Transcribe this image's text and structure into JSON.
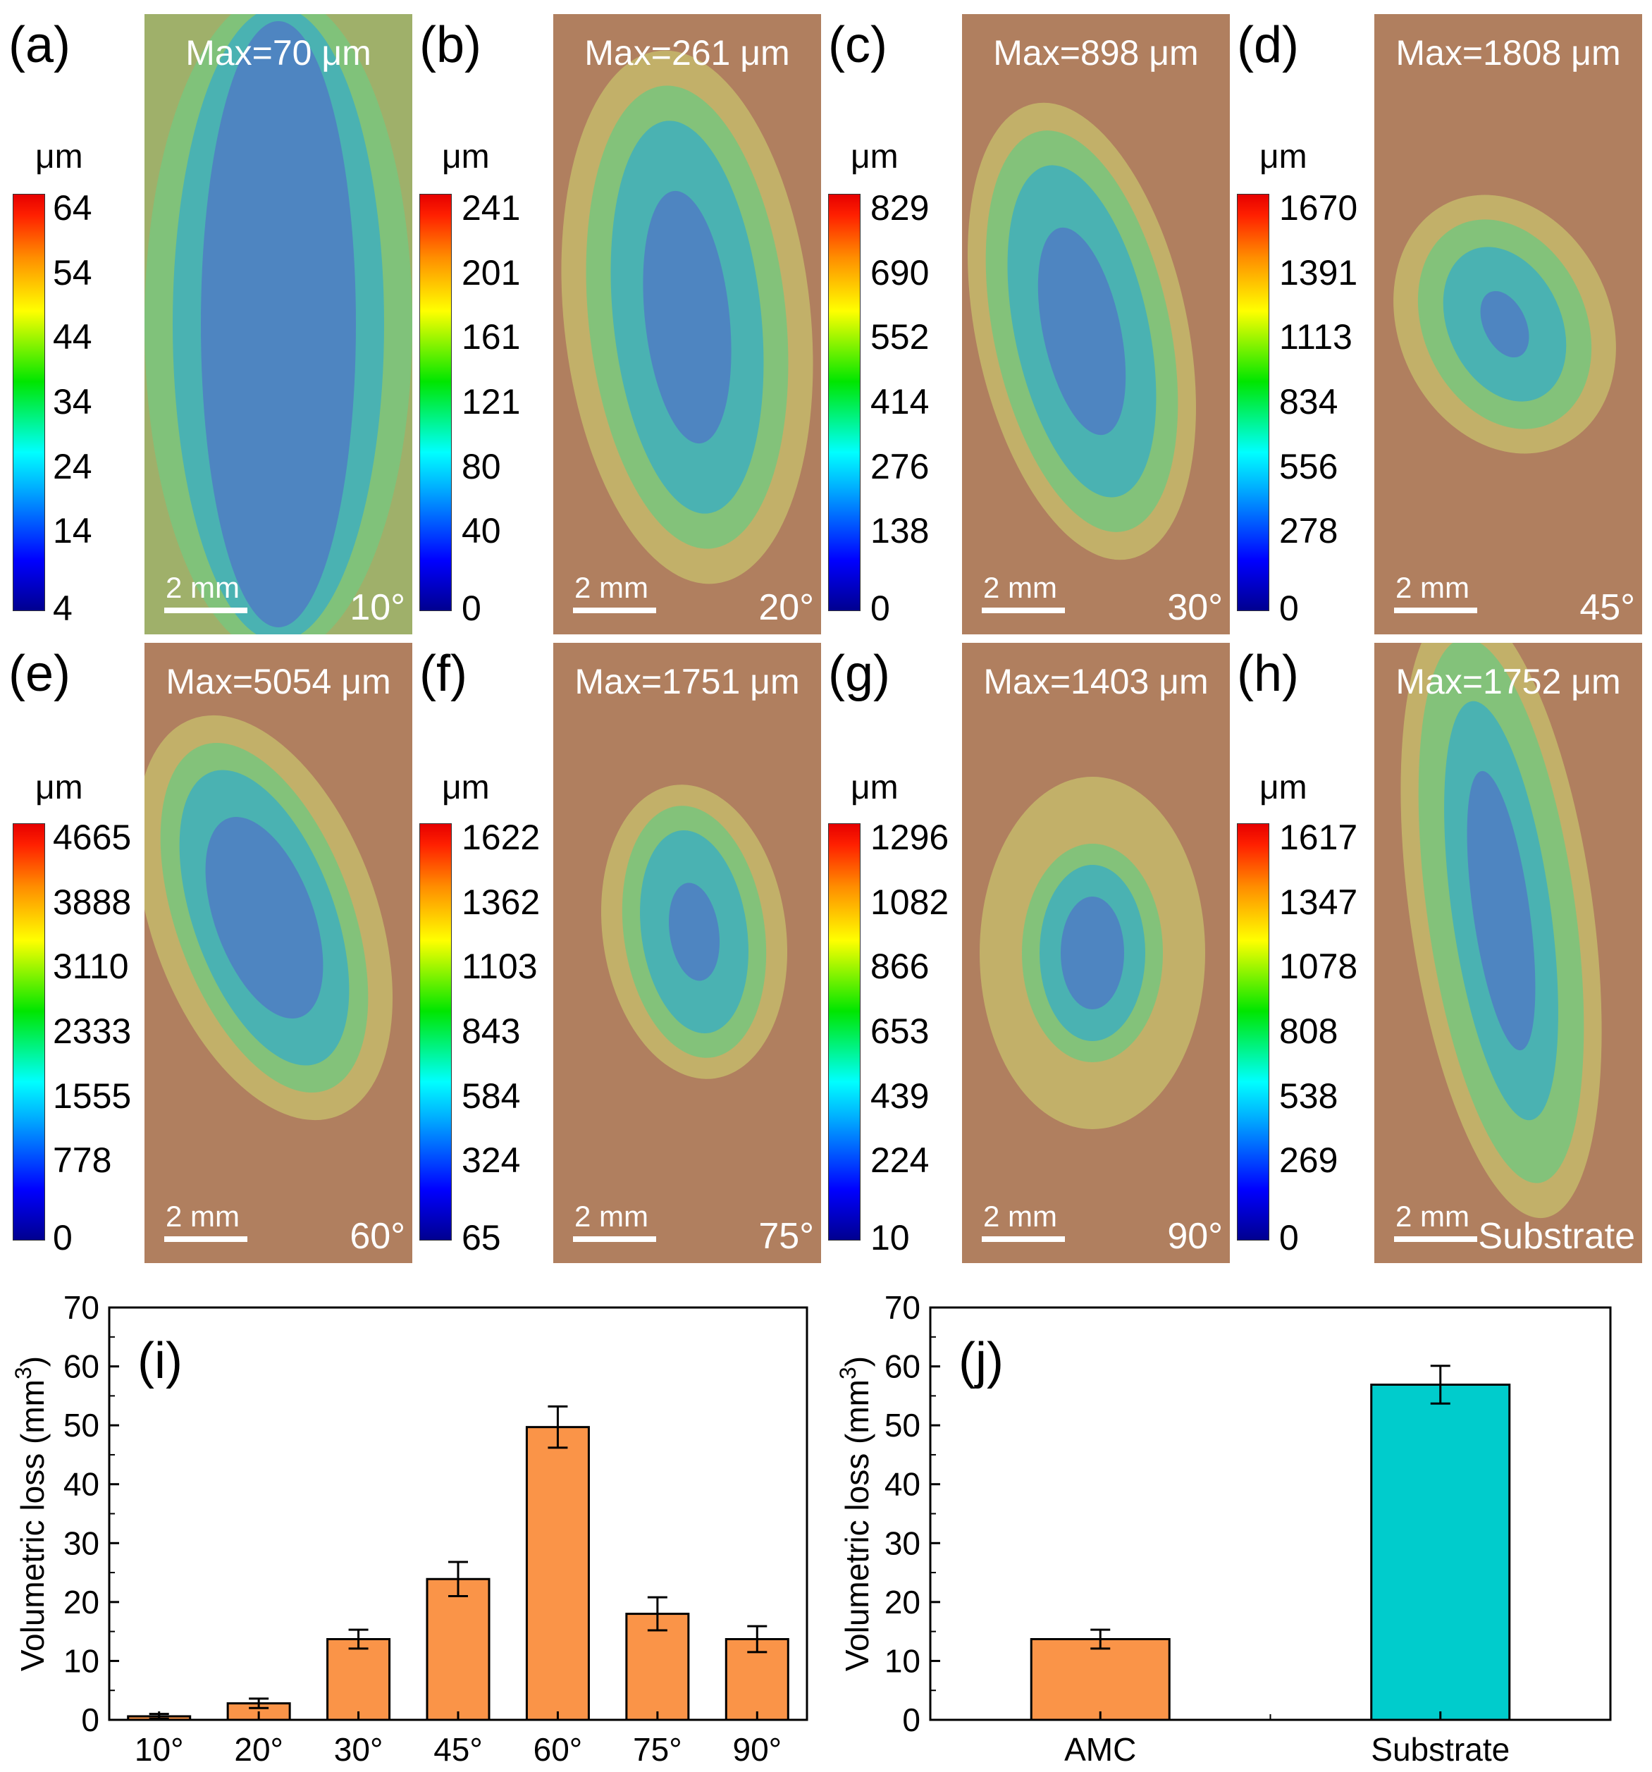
{
  "panels": [
    {
      "letter": "(a)",
      "max_label": "Max=70 μm",
      "angle": "10°",
      "scale": "2 mm",
      "unit": "μm",
      "ticks": [
        "64",
        "54",
        "44",
        "34",
        "24",
        "14",
        "4"
      ],
      "shape": "band"
    },
    {
      "letter": "(b)",
      "max_label": "Max=261 μm",
      "angle": "20°",
      "scale": "2 mm",
      "unit": "μm",
      "ticks": [
        "241",
        "201",
        "161",
        "121",
        "80",
        "40",
        "0"
      ],
      "shape": "ellipse"
    },
    {
      "letter": "(c)",
      "max_label": "Max=898 μm",
      "angle": "30°",
      "scale": "2 mm",
      "unit": "μm",
      "ticks": [
        "829",
        "690",
        "552",
        "414",
        "276",
        "138",
        "0"
      ],
      "shape": "drop"
    },
    {
      "letter": "(d)",
      "max_label": "Max=1808 μm",
      "angle": "45°",
      "scale": "2 mm",
      "unit": "μm",
      "ticks": [
        "1670",
        "1391",
        "1113",
        "834",
        "556",
        "278",
        "0"
      ],
      "shape": "kidney"
    },
    {
      "letter": "(e)",
      "max_label": "Max=5054 μm",
      "angle": "60°",
      "scale": "2 mm",
      "unit": "μm",
      "ticks": [
        "4665",
        "3888",
        "3110",
        "2333",
        "1555",
        "778",
        "0"
      ],
      "shape": "pear"
    },
    {
      "letter": "(f)",
      "max_label": "Max=1751 μm",
      "angle": "75°",
      "scale": "2 mm",
      "unit": "μm",
      "ticks": [
        "1622",
        "1362",
        "1103",
        "843",
        "584",
        "324",
        "65"
      ],
      "shape": "oval"
    },
    {
      "letter": "(g)",
      "max_label": "Max=1403 μm",
      "angle": "90°",
      "scale": "2 mm",
      "unit": "μm",
      "ticks": [
        "1296",
        "1082",
        "866",
        "653",
        "439",
        "224",
        "10"
      ],
      "shape": "round"
    },
    {
      "letter": "(h)",
      "max_label": "Max=1752 μm",
      "angle": "Substrate",
      "scale": "2 mm",
      "unit": "μm",
      "ticks": [
        "1617",
        "1347",
        "1078",
        "808",
        "538",
        "269",
        "0"
      ],
      "shape": "long"
    }
  ],
  "chart_data": [
    {
      "type": "bar",
      "panel": "(i)",
      "categories": [
        "10°",
        "20°",
        "30°",
        "45°",
        "60°",
        "75°",
        "90°"
      ],
      "values": [
        0.6,
        2.8,
        13.7,
        23.9,
        49.7,
        18.0,
        13.7
      ],
      "errors": [
        0.4,
        0.8,
        1.6,
        2.9,
        3.5,
        2.8,
        2.2
      ],
      "ylabel": "Volumetric loss (mm3)",
      "ylim": [
        0,
        70
      ],
      "yticks": [
        "0",
        "10",
        "20",
        "30",
        "40",
        "50",
        "60",
        "70"
      ],
      "color": "#fa9448"
    },
    {
      "type": "bar",
      "panel": "(j)",
      "categories": [
        "AMC",
        "Substrate"
      ],
      "values": [
        13.7,
        56.9
      ],
      "errors": [
        1.6,
        3.2
      ],
      "ylabel": "Volumetric loss (mm3)",
      "ylim": [
        0,
        70
      ],
      "yticks": [
        "0",
        "10",
        "20",
        "30",
        "40",
        "50",
        "60",
        "70"
      ],
      "colors": [
        "#fa9448",
        "#00cccc"
      ]
    }
  ]
}
